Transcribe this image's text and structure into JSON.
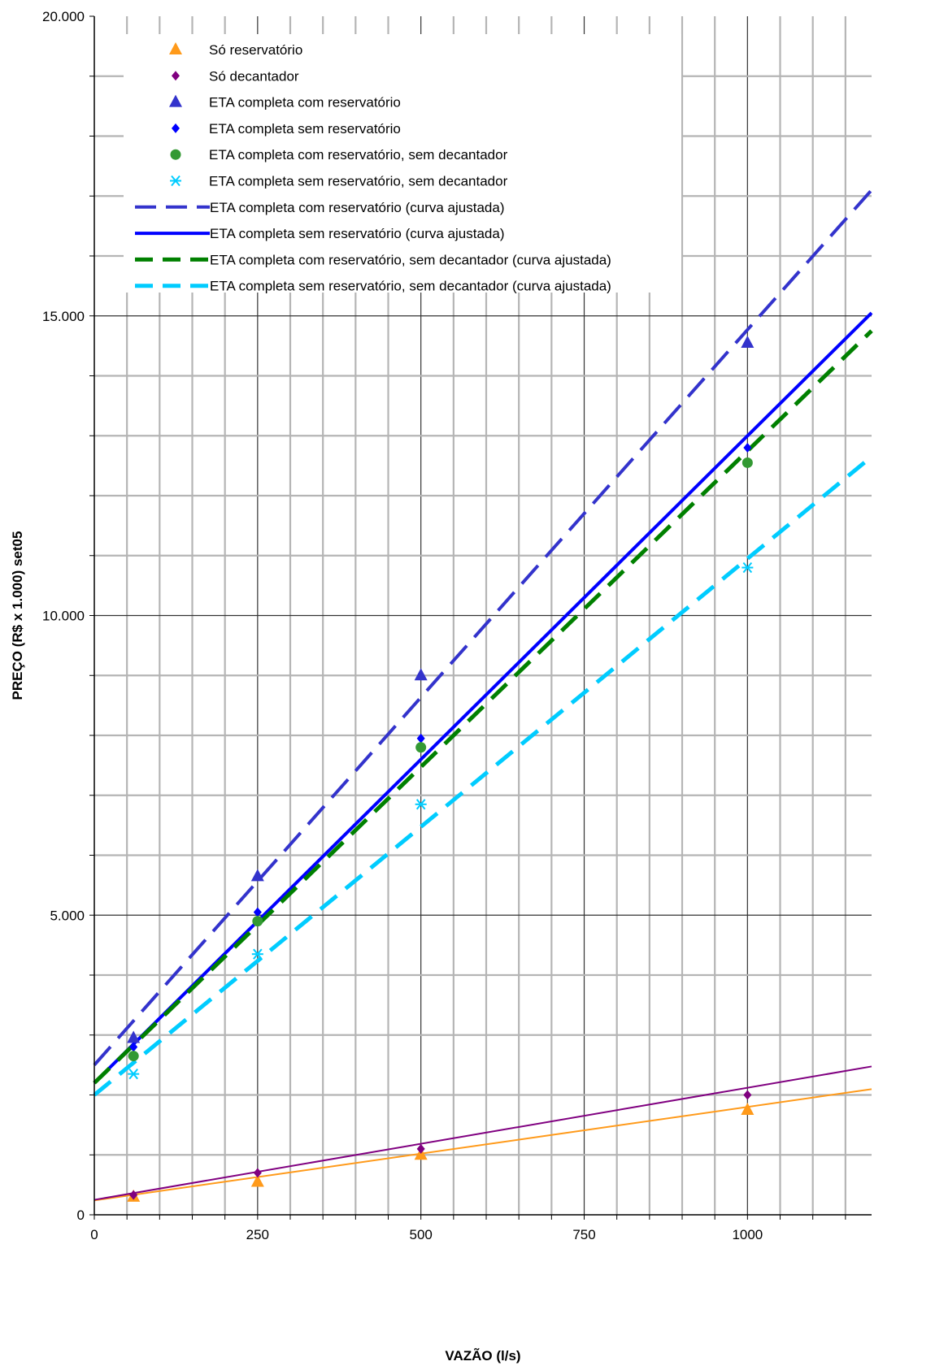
{
  "chart_data": {
    "type": "scatter",
    "xlabel": "VAZÃO (l/s)",
    "ylabel": "PREÇO (R$ x 1.000) set05",
    "xlim": [
      0,
      1190
    ],
    "ylim": [
      0,
      20000
    ],
    "x_ticks": [
      {
        "value": 0,
        "label": "0"
      },
      {
        "value": 250,
        "label": "250"
      },
      {
        "value": 500,
        "label": "500"
      },
      {
        "value": 750,
        "label": "750"
      },
      {
        "value": 1000,
        "label": "1000"
      }
    ],
    "y_ticks": [
      {
        "value": 0,
        "label": "0"
      },
      {
        "value": 5000,
        "label": "5.000"
      },
      {
        "value": 10000,
        "label": "10.000"
      },
      {
        "value": 15000,
        "label": "15.000"
      },
      {
        "value": 20000,
        "label": "20.000"
      }
    ],
    "grid": true,
    "legend_position": "top-left",
    "series": [
      {
        "name": "Só reservatório",
        "kind": "points",
        "marker": "triangle",
        "color": "#ff9a1a",
        "x": [
          60,
          250,
          500,
          1000
        ],
        "y": [
          300,
          550,
          1000,
          1750
        ],
        "fit": {
          "slope": 1.56,
          "intercept": 240,
          "color": "#ff9a1a",
          "style": "solid",
          "width": 2
        }
      },
      {
        "name": "Só decantador",
        "kind": "points",
        "marker": "diamond",
        "color": "#800080",
        "x": [
          60,
          250,
          500,
          1000
        ],
        "y": [
          330,
          700,
          1100,
          2000
        ],
        "fit": {
          "slope": 1.87,
          "intercept": 250,
          "color": "#800080",
          "style": "solid",
          "width": 2
        }
      },
      {
        "name": "ETA completa com reservatório",
        "kind": "points",
        "marker": "triangle",
        "color": "#3333cc",
        "x": [
          60,
          250,
          500,
          1000
        ],
        "y": [
          2950,
          5650,
          9000,
          14550
        ]
      },
      {
        "name": "ETA completa sem reservatório",
        "kind": "points",
        "marker": "diamond",
        "color": "#0000ff",
        "x": [
          60,
          250,
          500,
          1000
        ],
        "y": [
          2800,
          5050,
          7950,
          12800
        ]
      },
      {
        "name": "ETA completa com reservatório, sem decantador",
        "kind": "points",
        "marker": "circle",
        "color": "#339933",
        "x": [
          60,
          250,
          500,
          1000
        ],
        "y": [
          2650,
          4900,
          7800,
          12550
        ]
      },
      {
        "name": "ETA completa sem reservatório, sem decantador",
        "kind": "points",
        "marker": "asterisk",
        "color": "#00ccff",
        "x": [
          60,
          250,
          500,
          1000
        ],
        "y": [
          2350,
          4350,
          6850,
          10800
        ]
      },
      {
        "name": "ETA completa com reservatório (curva ajustada)",
        "kind": "line",
        "color": "#3333cc",
        "style": "dashed",
        "width": 4,
        "x": [
          0,
          1190
        ],
        "y": [
          2500,
          17100
        ]
      },
      {
        "name": "ETA completa sem reservatório (curva ajustada)",
        "kind": "line",
        "color": "#0000ff",
        "style": "solid",
        "width": 4,
        "x": [
          0,
          1190
        ],
        "y": [
          2200,
          15050
        ]
      },
      {
        "name": "ETA completa com reservatório, sem decantador (curva ajustada)",
        "kind": "line",
        "color": "#008000",
        "style": "dashed",
        "width": 5,
        "x": [
          0,
          1190
        ],
        "y": [
          2200,
          14750
        ]
      },
      {
        "name": "ETA completa sem reservatório, sem decantador (curva ajustada)",
        "kind": "line",
        "color": "#00ccff",
        "style": "dashed",
        "width": 5,
        "x": [
          0,
          1190
        ],
        "y": [
          2000,
          12650
        ]
      }
    ]
  }
}
